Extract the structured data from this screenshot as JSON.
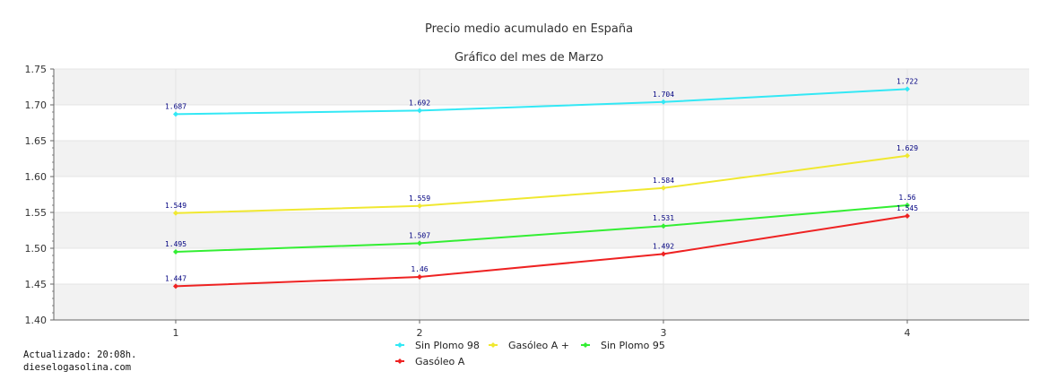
{
  "chart_data": {
    "type": "line",
    "title": "Precio medio acumulado en España",
    "subtitle": "Gráfico del mes de Marzo",
    "x": [
      1,
      2,
      3,
      4
    ],
    "x_ticks": [
      "1",
      "2",
      "3",
      "4"
    ],
    "xlim": [
      0.5,
      4.5
    ],
    "ylim": [
      1.4,
      1.75
    ],
    "y_ticks": [
      "1.40",
      "1.45",
      "1.50",
      "1.55",
      "1.60",
      "1.65",
      "1.70",
      "1.75"
    ],
    "grid": true,
    "legend_position": "bottom",
    "series": [
      {
        "name": "Sin Plomo 98",
        "color": "#33e8f5",
        "values": [
          1.687,
          1.692,
          1.704,
          1.722
        ],
        "labels": [
          "1.687",
          "1.692",
          "1.704",
          "1.722"
        ]
      },
      {
        "name": "Gasóleo A +",
        "color": "#f0e830",
        "values": [
          1.549,
          1.559,
          1.584,
          1.629
        ],
        "labels": [
          "1.549",
          "1.559",
          "1.584",
          "1.629"
        ]
      },
      {
        "name": "Sin Plomo 95",
        "color": "#33ee33",
        "values": [
          1.495,
          1.507,
          1.531,
          1.56
        ],
        "labels": [
          "1.495",
          "1.507",
          "1.531",
          "1.56"
        ]
      },
      {
        "name": "Gasóleo A",
        "color": "#ee2222",
        "values": [
          1.447,
          1.46,
          1.492,
          1.545
        ],
        "labels": [
          "1.447",
          "1.46",
          "1.492",
          "1.545"
        ]
      }
    ]
  },
  "footer": {
    "updated": "Actualizado: 20:08h.",
    "site": "dieselogasolina.com"
  }
}
